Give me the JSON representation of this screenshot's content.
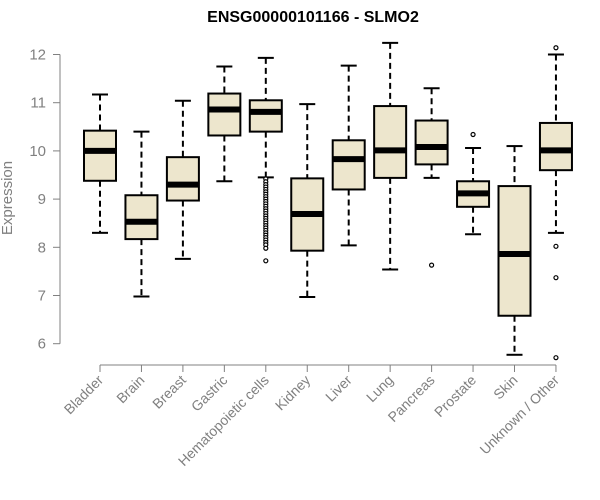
{
  "chart_data": {
    "type": "boxplot",
    "title": "ENSG00000101166 - SLMO2",
    "xlabel": "",
    "ylabel": "Expression",
    "ylim": [
      5.6,
      12.3
    ],
    "yticks": [
      6,
      7,
      8,
      9,
      10,
      11,
      12
    ],
    "grid": false,
    "box_fill": "#ede6cd",
    "line_color": "#000000",
    "categories": [
      "Bladder",
      "Brain",
      "Breast",
      "Gastric",
      "Hematopoietic cells",
      "Kidney",
      "Liver",
      "Lung",
      "Pancreas",
      "Prostate",
      "Skin",
      "Unknown / Other"
    ],
    "boxes": [
      {
        "category": "Bladder",
        "whisker_low": 8.3,
        "q1": 9.38,
        "median": 10.0,
        "q3": 10.42,
        "whisker_high": 11.17,
        "outliers": []
      },
      {
        "category": "Brain",
        "whisker_low": 6.98,
        "q1": 8.17,
        "median": 8.53,
        "q3": 9.08,
        "whisker_high": 10.4,
        "outliers": []
      },
      {
        "category": "Breast",
        "whisker_low": 7.76,
        "q1": 8.97,
        "median": 9.3,
        "q3": 9.87,
        "whisker_high": 11.04,
        "outliers": []
      },
      {
        "category": "Gastric",
        "whisker_low": 9.37,
        "q1": 10.32,
        "median": 10.86,
        "q3": 11.19,
        "whisker_high": 11.75,
        "outliers": []
      },
      {
        "category": "Hematopoietic cells",
        "whisker_low": 9.45,
        "q1": 10.4,
        "median": 10.81,
        "q3": 11.05,
        "whisker_high": 11.93,
        "outliers": [
          9.42,
          9.36,
          9.3,
          9.25,
          9.2,
          9.15,
          9.1,
          9.05,
          9.0,
          8.95,
          8.9,
          8.85,
          8.8,
          8.75,
          8.7,
          8.65,
          8.6,
          8.55,
          8.5,
          8.45,
          8.4,
          8.35,
          8.3,
          8.25,
          8.2,
          8.15,
          8.1,
          8.05,
          7.98,
          7.72
        ]
      },
      {
        "category": "Kidney",
        "whisker_low": 6.97,
        "q1": 7.93,
        "median": 8.69,
        "q3": 9.43,
        "whisker_high": 10.97,
        "outliers": []
      },
      {
        "category": "Liver",
        "whisker_low": 8.04,
        "q1": 9.2,
        "median": 9.83,
        "q3": 10.22,
        "whisker_high": 11.77,
        "outliers": []
      },
      {
        "category": "Lung",
        "whisker_low": 7.54,
        "q1": 9.44,
        "median": 10.01,
        "q3": 10.93,
        "whisker_high": 12.24,
        "outliers": []
      },
      {
        "category": "Pancreas",
        "whisker_low": 9.44,
        "q1": 9.72,
        "median": 10.08,
        "q3": 10.63,
        "whisker_high": 11.3,
        "outliers": [
          7.63
        ]
      },
      {
        "category": "Prostate",
        "whisker_low": 8.27,
        "q1": 8.84,
        "median": 9.12,
        "q3": 9.37,
        "whisker_high": 10.06,
        "outliers": [
          10.34
        ]
      },
      {
        "category": "Skin",
        "whisker_low": 5.77,
        "q1": 6.58,
        "median": 7.86,
        "q3": 9.27,
        "whisker_high": 10.1,
        "outliers": []
      },
      {
        "category": "Unknown / Other",
        "whisker_low": 8.3,
        "q1": 9.6,
        "median": 10.01,
        "q3": 10.58,
        "whisker_high": 12.0,
        "outliers": [
          12.14,
          8.02,
          7.37,
          5.71
        ]
      }
    ]
  }
}
